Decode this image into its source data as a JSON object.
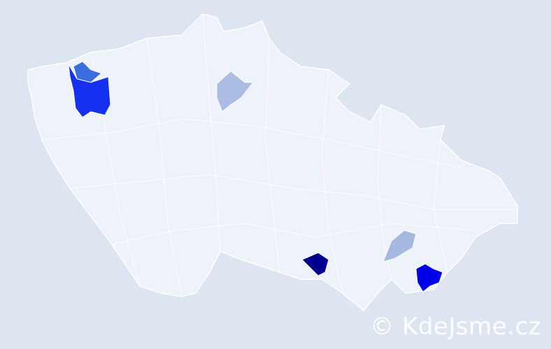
{
  "map": {
    "background_color": "#dde5f1",
    "base_fill": "#eef2f9",
    "border_color": "#ffffff",
    "highlighted_regions": [
      {
        "shade": "#1530f0"
      },
      {
        "shade": "#3a6ee0"
      },
      {
        "shade": "#abbde3"
      },
      {
        "shade": "#a5b8e0"
      },
      {
        "shade": "#000090"
      },
      {
        "shade": "#0000e8"
      }
    ]
  },
  "watermark": "© KdeJsme.cz"
}
